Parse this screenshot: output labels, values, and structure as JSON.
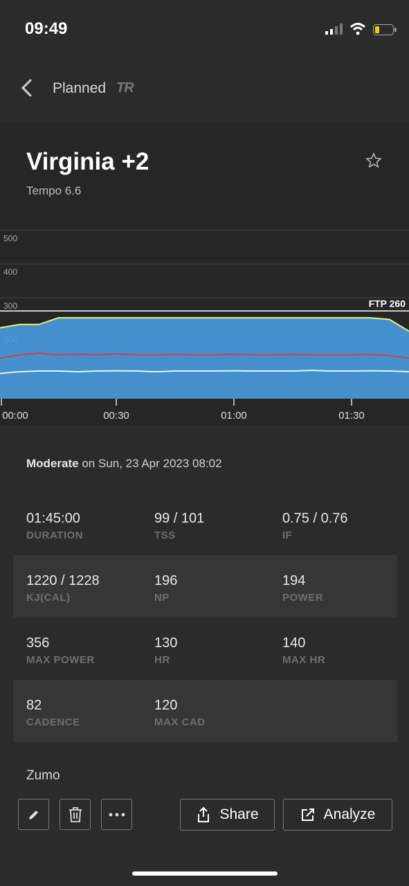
{
  "status": {
    "time": "09:49"
  },
  "nav": {
    "title": "Planned",
    "logo": "TR"
  },
  "workout": {
    "title": "Virginia +2",
    "subtitle": "Tempo 6.6"
  },
  "chart_data": {
    "type": "area",
    "x_ticks": [
      "00:00",
      "00:30",
      "01:00",
      "01:30"
    ],
    "y_ticks": [
      500,
      400,
      300,
      200
    ],
    "ylim": [
      0,
      550
    ],
    "ftp_label": "FTP 260",
    "ftp": 260,
    "series": [
      {
        "values": [
          210,
          220,
          220,
          240,
          240,
          240,
          240,
          240,
          240,
          240,
          240,
          240,
          240,
          240,
          240,
          240,
          240,
          240,
          240,
          240,
          235,
          200
        ]
      },
      {
        "values": [
          120,
          130,
          135,
          130,
          132,
          130,
          133,
          130,
          130,
          131,
          130,
          130,
          132,
          130,
          130,
          131,
          130,
          130,
          130,
          131,
          128,
          120
        ]
      },
      {
        "values": [
          75,
          80,
          82,
          82,
          80,
          82,
          83,
          82,
          80,
          82,
          82,
          82,
          83,
          82,
          82,
          82,
          84,
          82,
          82,
          83,
          82,
          80
        ]
      }
    ],
    "colors": {
      "area": "#4a9be0",
      "power": "#e8f56a",
      "hr": "#d93a3a",
      "cadence": "#ffffff",
      "ftp": "#ffffff"
    }
  },
  "summary": {
    "level": "Moderate",
    "date": "on Sun, 23 Apr 2023 08:02"
  },
  "stats": [
    [
      {
        "value": "01:45:00",
        "label": "DURATION"
      },
      {
        "value": "99 / 101",
        "label": "TSS"
      },
      {
        "value": "0.75 / 0.76",
        "label": "IF"
      }
    ],
    [
      {
        "value": "1220 / 1228",
        "label": "KJ(CAL)"
      },
      {
        "value": "196",
        "label": "NP"
      },
      {
        "value": "194",
        "label": "POWER"
      }
    ],
    [
      {
        "value": "356",
        "label": "MAX POWER"
      },
      {
        "value": "130",
        "label": "HR"
      },
      {
        "value": "140",
        "label": "MAX HR"
      }
    ],
    [
      {
        "value": "82",
        "label": "CADENCE"
      },
      {
        "value": "120",
        "label": "MAX CAD"
      }
    ]
  ],
  "device": "Zumo",
  "actions": {
    "share": "Share",
    "analyze": "Analyze"
  },
  "icons": [
    "signal-icon",
    "wifi-icon",
    "battery-icon",
    "back-icon",
    "star-icon",
    "pencil-icon",
    "trash-icon",
    "more-icon",
    "share-icon",
    "external-link-icon"
  ]
}
